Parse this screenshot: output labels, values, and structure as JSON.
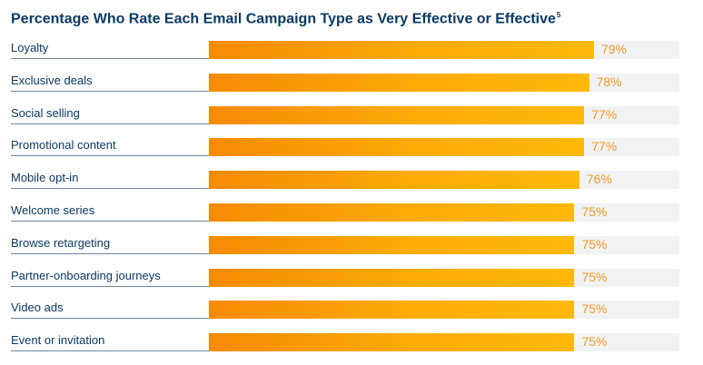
{
  "title": "Percentage Who Rate Each Email Campaign Type as Very Effective or Effective",
  "title_footnote": "5",
  "colors": {
    "title": "#0b3a66",
    "bar_start": "#f78a05",
    "bar_end": "#fdb90b",
    "track": "#f1f2f3",
    "value_text": "#f39a1f"
  },
  "chart_data": {
    "type": "bar",
    "orientation": "horizontal",
    "title": "Percentage Who Rate Each Email Campaign Type as Very Effective or Effective",
    "categories": [
      "Loyalty",
      "Exclusive deals",
      "Social selling",
      "Promotional content",
      "Mobile opt-in",
      "Welcome series",
      "Browse retargeting",
      "Partner-onboarding journeys",
      "Video ads",
      "Event or invitation"
    ],
    "values": [
      79,
      78,
      77,
      77,
      76,
      75,
      75,
      75,
      75,
      75
    ],
    "value_labels": [
      "79%",
      "78%",
      "77%",
      "77%",
      "76%",
      "75%",
      "75%",
      "75%",
      "75%",
      "75%"
    ],
    "xlim": [
      0,
      100
    ],
    "grid": false,
    "legend": "none"
  }
}
